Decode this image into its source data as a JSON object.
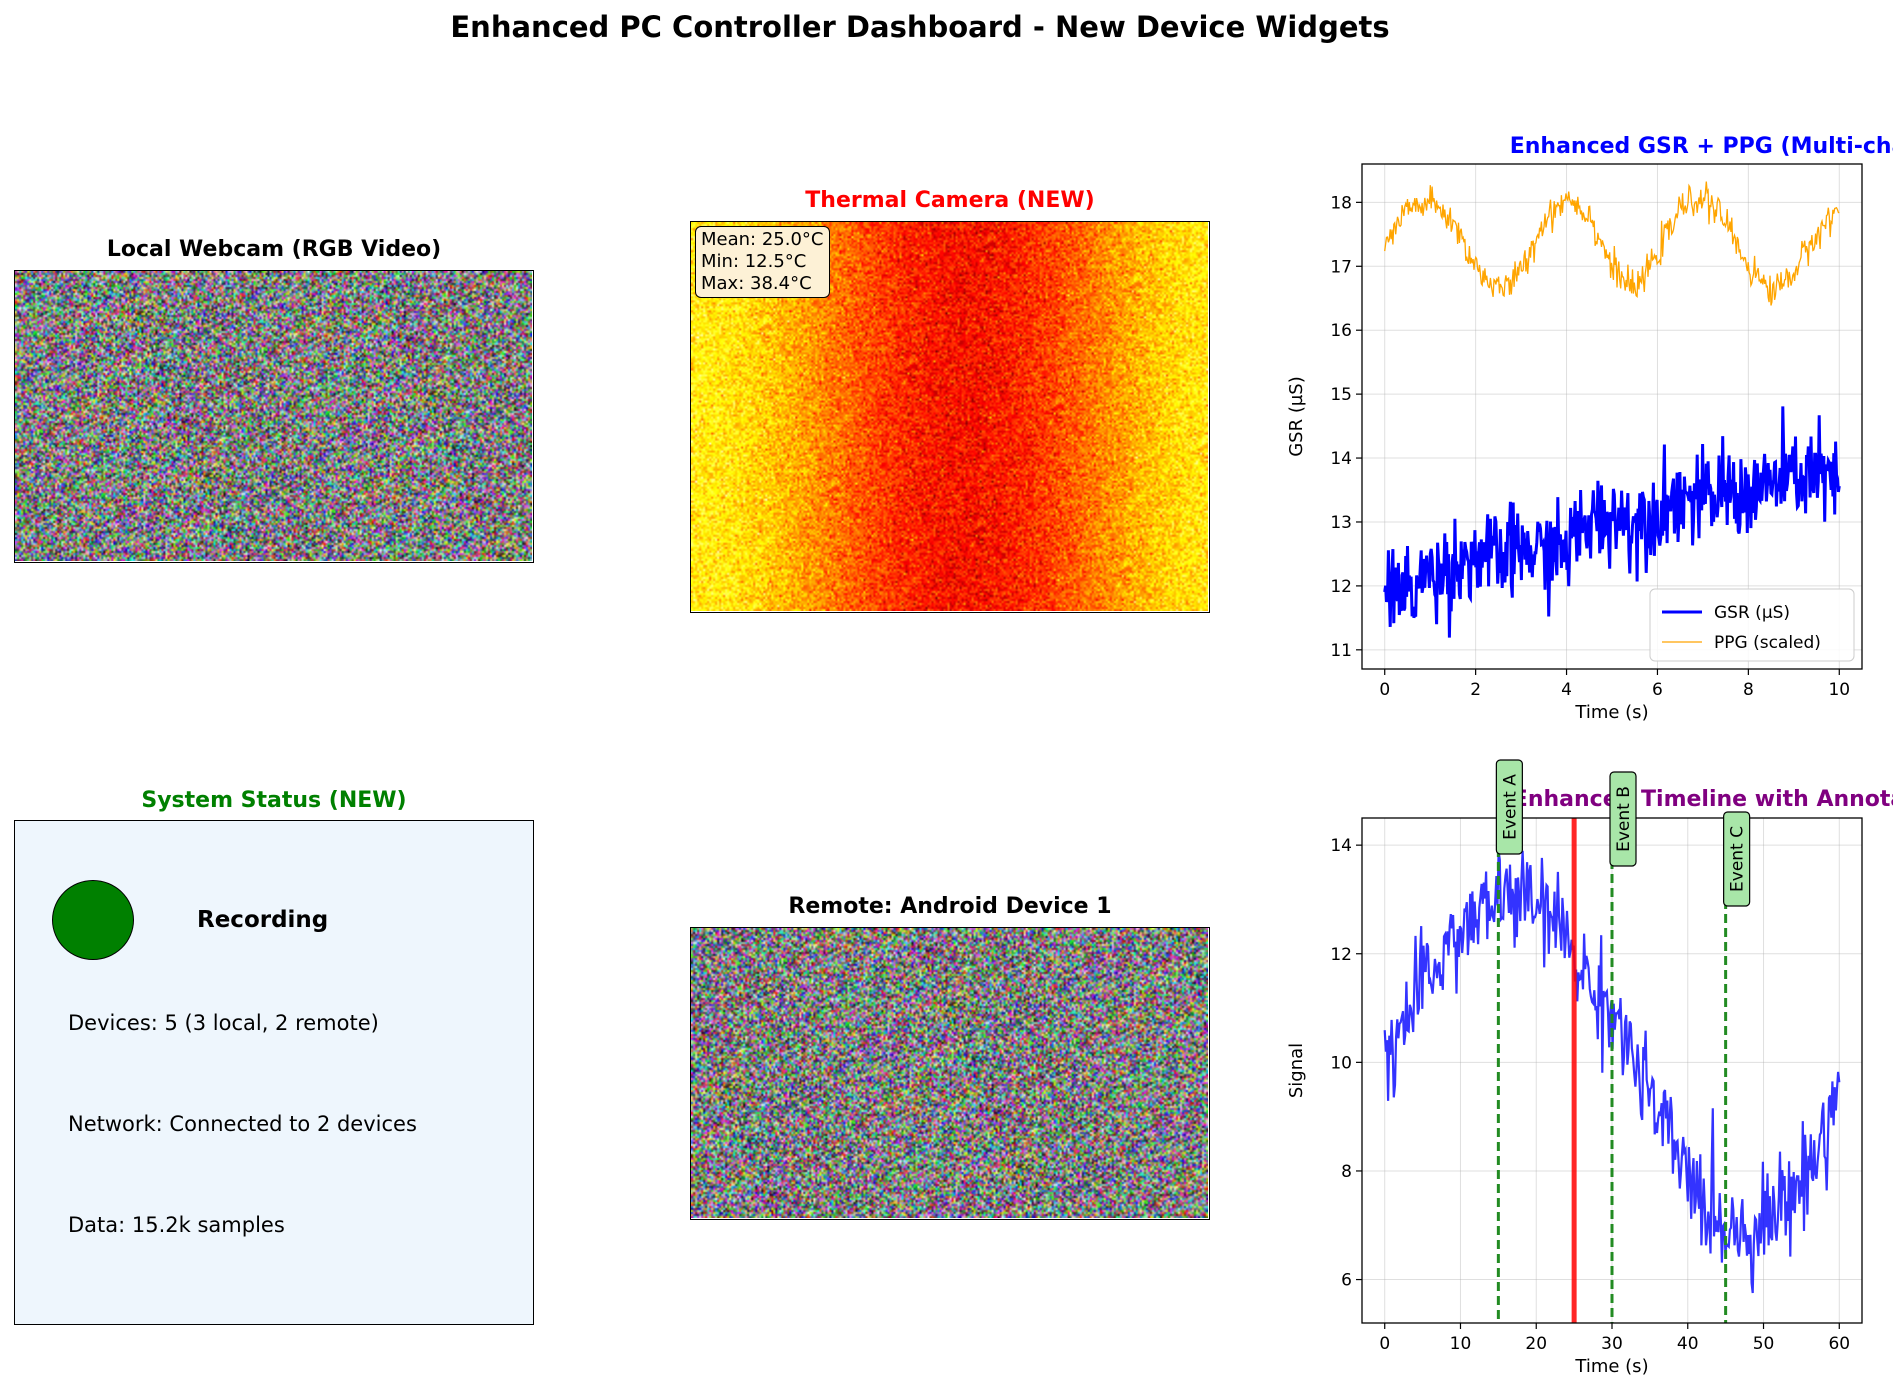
{
  "title": "Enhanced PC Controller Dashboard - New Device Widgets",
  "panels": {
    "webcam": {
      "title": "Local Webcam (RGB Video)",
      "title_color": "#000000"
    },
    "thermal": {
      "title": "Thermal Camera (NEW)",
      "title_color": "#ff0000",
      "stats": [
        "Mean: 25.0°C",
        "Min: 12.5°C",
        "Max: 38.4°C"
      ]
    },
    "remote": {
      "title": "Remote: Android Device 1",
      "title_color": "#000000"
    },
    "status": {
      "title": "System Status (NEW)",
      "title_color": "#008000",
      "state": "Recording",
      "state_color": "#008000",
      "lines": [
        "Devices: 5 (3 local, 2 remote)",
        "Network: Connected to 2 devices",
        "Data: 15.2k samples"
      ]
    }
  },
  "chart_data": [
    {
      "type": "line",
      "title": "Enhanced GSR + PPG (Multi-channel)",
      "title_color": "#0000ff",
      "xlabel": "Time (s)",
      "ylabel": "GSR (µS)",
      "xlim": [
        -0.5,
        10.5
      ],
      "ylim": [
        10.7,
        18.6
      ],
      "xticks": [
        0,
        2,
        4,
        6,
        8,
        10
      ],
      "yticks": [
        11,
        12,
        13,
        14,
        15,
        16,
        17,
        18
      ],
      "grid": true,
      "legend": "bottom-right",
      "series": [
        {
          "name": "GSR (µS)",
          "color": "#0000ff",
          "x": [
            0,
            0.5,
            1,
            1.5,
            2,
            2.5,
            3,
            3.5,
            4,
            4.5,
            5,
            5.5,
            6,
            6.5,
            7,
            7.5,
            8,
            8.5,
            9,
            9.5,
            10
          ],
          "y": [
            12.0,
            11.9,
            12.2,
            12.3,
            12.5,
            12.4,
            12.6,
            12.5,
            12.6,
            13.0,
            13.1,
            13.0,
            13.2,
            13.4,
            13.3,
            13.5,
            13.4,
            13.6,
            13.7,
            13.8,
            13.5
          ]
        },
        {
          "name": "PPG (scaled)",
          "color": "#ffa500",
          "x": [
            0,
            0.5,
            1,
            1.5,
            2,
            2.5,
            3,
            3.5,
            4,
            4.5,
            5,
            5.5,
            6,
            6.5,
            7,
            7.5,
            8,
            8.5,
            9,
            9.5,
            10
          ],
          "y": [
            17.3,
            17.9,
            18.0,
            17.7,
            17.0,
            16.6,
            16.9,
            17.7,
            18.1,
            17.8,
            17.0,
            16.6,
            17.2,
            17.9,
            18.1,
            17.7,
            17.0,
            16.6,
            16.9,
            17.5,
            17.9
          ]
        }
      ]
    },
    {
      "type": "line",
      "title": "Enhanced Timeline with Annotations",
      "title_color": "#800080",
      "xlabel": "Time (s)",
      "ylabel": "Signal",
      "xlim": [
        -3,
        63
      ],
      "ylim": [
        5.2,
        14.5
      ],
      "xticks": [
        0,
        10,
        20,
        30,
        40,
        50,
        60
      ],
      "yticks": [
        6,
        8,
        10,
        12,
        14
      ],
      "grid": true,
      "series": [
        {
          "color": "#0000ff",
          "x": [
            0,
            3,
            6,
            9,
            12,
            15,
            18,
            21,
            24,
            27,
            30,
            33,
            36,
            39,
            42,
            45,
            48,
            51,
            54,
            57,
            60
          ],
          "y": [
            10.2,
            10.8,
            11.6,
            12.3,
            12.6,
            13.1,
            13.0,
            12.8,
            12.3,
            11.4,
            11.0,
            10.0,
            9.0,
            8.2,
            7.4,
            7.0,
            6.9,
            7.2,
            7.6,
            8.3,
            9.6
          ]
        }
      ],
      "annotations": [
        {
          "x": 15,
          "label": "Event A"
        },
        {
          "x": 30,
          "label": "Event B"
        },
        {
          "x": 45,
          "label": "Event C"
        }
      ],
      "current_marker": {
        "x": 25,
        "color": "#ff0000"
      }
    }
  ]
}
